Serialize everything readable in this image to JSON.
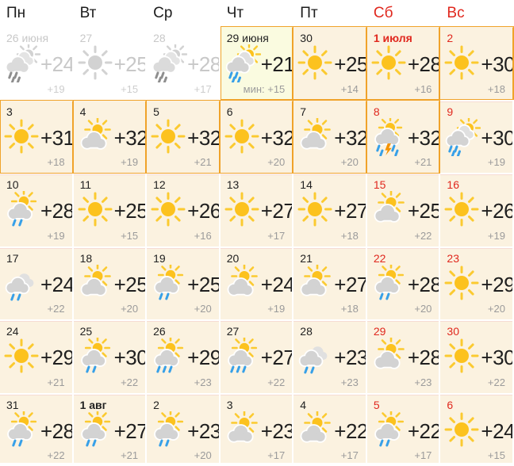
{
  "colors": {
    "weekend_red": "#e0281e",
    "forecast_border": "#f0a32a",
    "cell_bg": "#fbf2e0",
    "today_bg": "#fafbe0",
    "past_bg": "#ffffff",
    "sun": "#fcc21e",
    "sun_ray": "#fbca30",
    "cloud": "#d3d3d3",
    "cloud_back": "#e0e0e0",
    "rain": "#37a0e8",
    "lightning": "#f59300",
    "past_sun": "#d2d2d2",
    "past_cloud": "#dbdbdb",
    "past_rain": "#8f8f8f",
    "day_temp": "#1f1f1f",
    "night_temp": "#9b9b9b"
  },
  "header": {
    "weekdays": [
      {
        "label": "Пн",
        "weekend": false
      },
      {
        "label": "Вт",
        "weekend": false
      },
      {
        "label": "Ср",
        "weekend": false
      },
      {
        "label": "Чт",
        "weekend": false
      },
      {
        "label": "Пт",
        "weekend": false
      },
      {
        "label": "Сб",
        "weekend": true
      },
      {
        "label": "Вс",
        "weekend": true
      }
    ]
  },
  "calendar": {
    "cells": [
      {
        "date": "26 июня",
        "icon": "sun-clouds-rain",
        "day": "+24",
        "night": "+19",
        "state": "past"
      },
      {
        "date": "27",
        "icon": "sun",
        "day": "+25",
        "night": "+15",
        "state": "past"
      },
      {
        "date": "28",
        "icon": "sun-clouds-rain",
        "day": "+28",
        "night": "+17",
        "state": "past"
      },
      {
        "date": "29 июня",
        "icon": "sun-clouds-rain",
        "day": "+21",
        "night": "мин: +15",
        "state": "today",
        "forecast": true
      },
      {
        "date": "30",
        "icon": "sun",
        "day": "+25",
        "night": "+14",
        "forecast": true
      },
      {
        "date": "1 июля",
        "icon": "sun",
        "day": "+28",
        "night": "+16",
        "weekend": true,
        "bold": true,
        "forecast": true
      },
      {
        "date": "2",
        "icon": "sun",
        "day": "+30",
        "night": "+18",
        "weekend": true,
        "forecast": true
      },
      {
        "date": "3",
        "icon": "sun",
        "day": "+31",
        "night": "+18",
        "forecast": true
      },
      {
        "date": "4",
        "icon": "sun-cloud",
        "day": "+32",
        "night": "+19",
        "forecast": true
      },
      {
        "date": "5",
        "icon": "sun",
        "day": "+32",
        "night": "+21",
        "forecast": true
      },
      {
        "date": "6",
        "icon": "sun",
        "day": "+32",
        "night": "+20",
        "forecast": true
      },
      {
        "date": "7",
        "icon": "sun-cloud",
        "day": "+32",
        "night": "+20",
        "forecast": true
      },
      {
        "date": "8",
        "icon": "thunder",
        "day": "+32",
        "night": "+21",
        "weekend": true,
        "forecast": true
      },
      {
        "date": "9",
        "icon": "sun-clouds-rain",
        "day": "+30",
        "night": "+19",
        "weekend": true
      },
      {
        "date": "10",
        "icon": "sun-cloud-rain-2",
        "day": "+28",
        "night": "+19"
      },
      {
        "date": "11",
        "icon": "sun",
        "day": "+25",
        "night": "+15"
      },
      {
        "date": "12",
        "icon": "sun",
        "day": "+26",
        "night": "+16"
      },
      {
        "date": "13",
        "icon": "sun",
        "day": "+27",
        "night": "+17"
      },
      {
        "date": "14",
        "icon": "sun",
        "day": "+27",
        "night": "+18"
      },
      {
        "date": "15",
        "icon": "sun-cloud",
        "day": "+25",
        "night": "+22",
        "weekend": true
      },
      {
        "date": "16",
        "icon": "sun",
        "day": "+26",
        "night": "+19",
        "weekend": true
      },
      {
        "date": "17",
        "icon": "clouds-rain-2",
        "day": "+24",
        "night": "+22"
      },
      {
        "date": "18",
        "icon": "sun-cloud",
        "day": "+25",
        "night": "+20"
      },
      {
        "date": "19",
        "icon": "sun-cloud-rain-2",
        "day": "+25",
        "night": "+20"
      },
      {
        "date": "20",
        "icon": "sun-cloud",
        "day": "+24",
        "night": "+19"
      },
      {
        "date": "21",
        "icon": "sun-cloud",
        "day": "+27",
        "night": "+18"
      },
      {
        "date": "22",
        "icon": "sun-cloud-rain-2",
        "day": "+28",
        "night": "+20",
        "weekend": true
      },
      {
        "date": "23",
        "icon": "sun",
        "day": "+29",
        "night": "+20",
        "weekend": true
      },
      {
        "date": "24",
        "icon": "sun",
        "day": "+29",
        "night": "+21"
      },
      {
        "date": "25",
        "icon": "sun-cloud-rain-2",
        "day": "+30",
        "night": "+22"
      },
      {
        "date": "26",
        "icon": "sun-cloud-rain-3",
        "day": "+29",
        "night": "+23"
      },
      {
        "date": "27",
        "icon": "sun-cloud-rain-3",
        "day": "+27",
        "night": "+22"
      },
      {
        "date": "28",
        "icon": "clouds-rain-2",
        "day": "+23",
        "night": "+23"
      },
      {
        "date": "29",
        "icon": "sun-cloud",
        "day": "+28",
        "night": "+23",
        "weekend": true
      },
      {
        "date": "30",
        "icon": "sun",
        "day": "+30",
        "night": "+22",
        "weekend": true
      },
      {
        "date": "31",
        "icon": "sun-cloud-rain-2",
        "day": "+28",
        "night": "+22"
      },
      {
        "date": "1 авг",
        "icon": "sun-cloud-rain-2",
        "day": "+27",
        "night": "+21",
        "bold": true
      },
      {
        "date": "2",
        "icon": "sun-cloud-rain-2",
        "day": "+23",
        "night": "+20"
      },
      {
        "date": "3",
        "icon": "sun-cloud",
        "day": "+23",
        "night": "+17"
      },
      {
        "date": "4",
        "icon": "sun-cloud",
        "day": "+22",
        "night": "+17"
      },
      {
        "date": "5",
        "icon": "sun-cloud-rain-2",
        "day": "+22",
        "night": "+17",
        "weekend": true
      },
      {
        "date": "6",
        "icon": "sun",
        "day": "+24",
        "night": "+15",
        "weekend": true
      }
    ]
  }
}
